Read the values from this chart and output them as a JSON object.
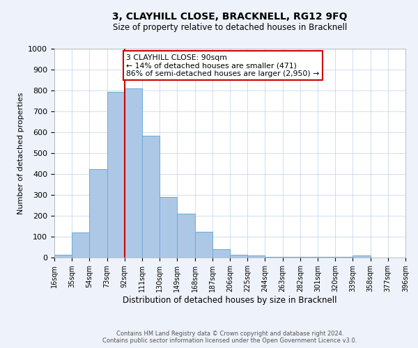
{
  "title": "3, CLAYHILL CLOSE, BRACKNELL, RG12 9FQ",
  "subtitle": "Size of property relative to detached houses in Bracknell",
  "xlabel": "Distribution of detached houses by size in Bracknell",
  "ylabel": "Number of detached properties",
  "bar_edges": [
    16,
    35,
    54,
    73,
    92,
    111,
    130,
    149,
    168,
    187,
    206,
    225,
    244,
    263,
    282,
    301,
    320,
    339,
    358,
    377,
    396
  ],
  "bar_heights": [
    15,
    120,
    425,
    795,
    810,
    585,
    290,
    210,
    125,
    40,
    15,
    10,
    2,
    2,
    2,
    2,
    2,
    10,
    0,
    0
  ],
  "bar_color": "#adc8e6",
  "bar_edgecolor": "#6aaad4",
  "vline_x": 92,
  "vline_color": "#cc0000",
  "annotation_text": "3 CLAYHILL CLOSE: 90sqm\n← 14% of detached houses are smaller (471)\n86% of semi-detached houses are larger (2,950) →",
  "annotation_box_edgecolor": "#cc0000",
  "annotation_box_facecolor": "#ffffff",
  "ylim": [
    0,
    1000
  ],
  "yticks": [
    0,
    100,
    200,
    300,
    400,
    500,
    600,
    700,
    800,
    900,
    1000
  ],
  "tick_labels": [
    "16sqm",
    "35sqm",
    "54sqm",
    "73sqm",
    "92sqm",
    "111sqm",
    "130sqm",
    "149sqm",
    "168sqm",
    "187sqm",
    "206sqm",
    "225sqm",
    "244sqm",
    "263sqm",
    "282sqm",
    "301sqm",
    "320sqm",
    "339sqm",
    "358sqm",
    "377sqm",
    "396sqm"
  ],
  "footer_line1": "Contains HM Land Registry data © Crown copyright and database right 2024.",
  "footer_line2": "Contains public sector information licensed under the Open Government Licence v3.0.",
  "bg_color": "#eef2fa",
  "plot_bg_color": "#ffffff"
}
